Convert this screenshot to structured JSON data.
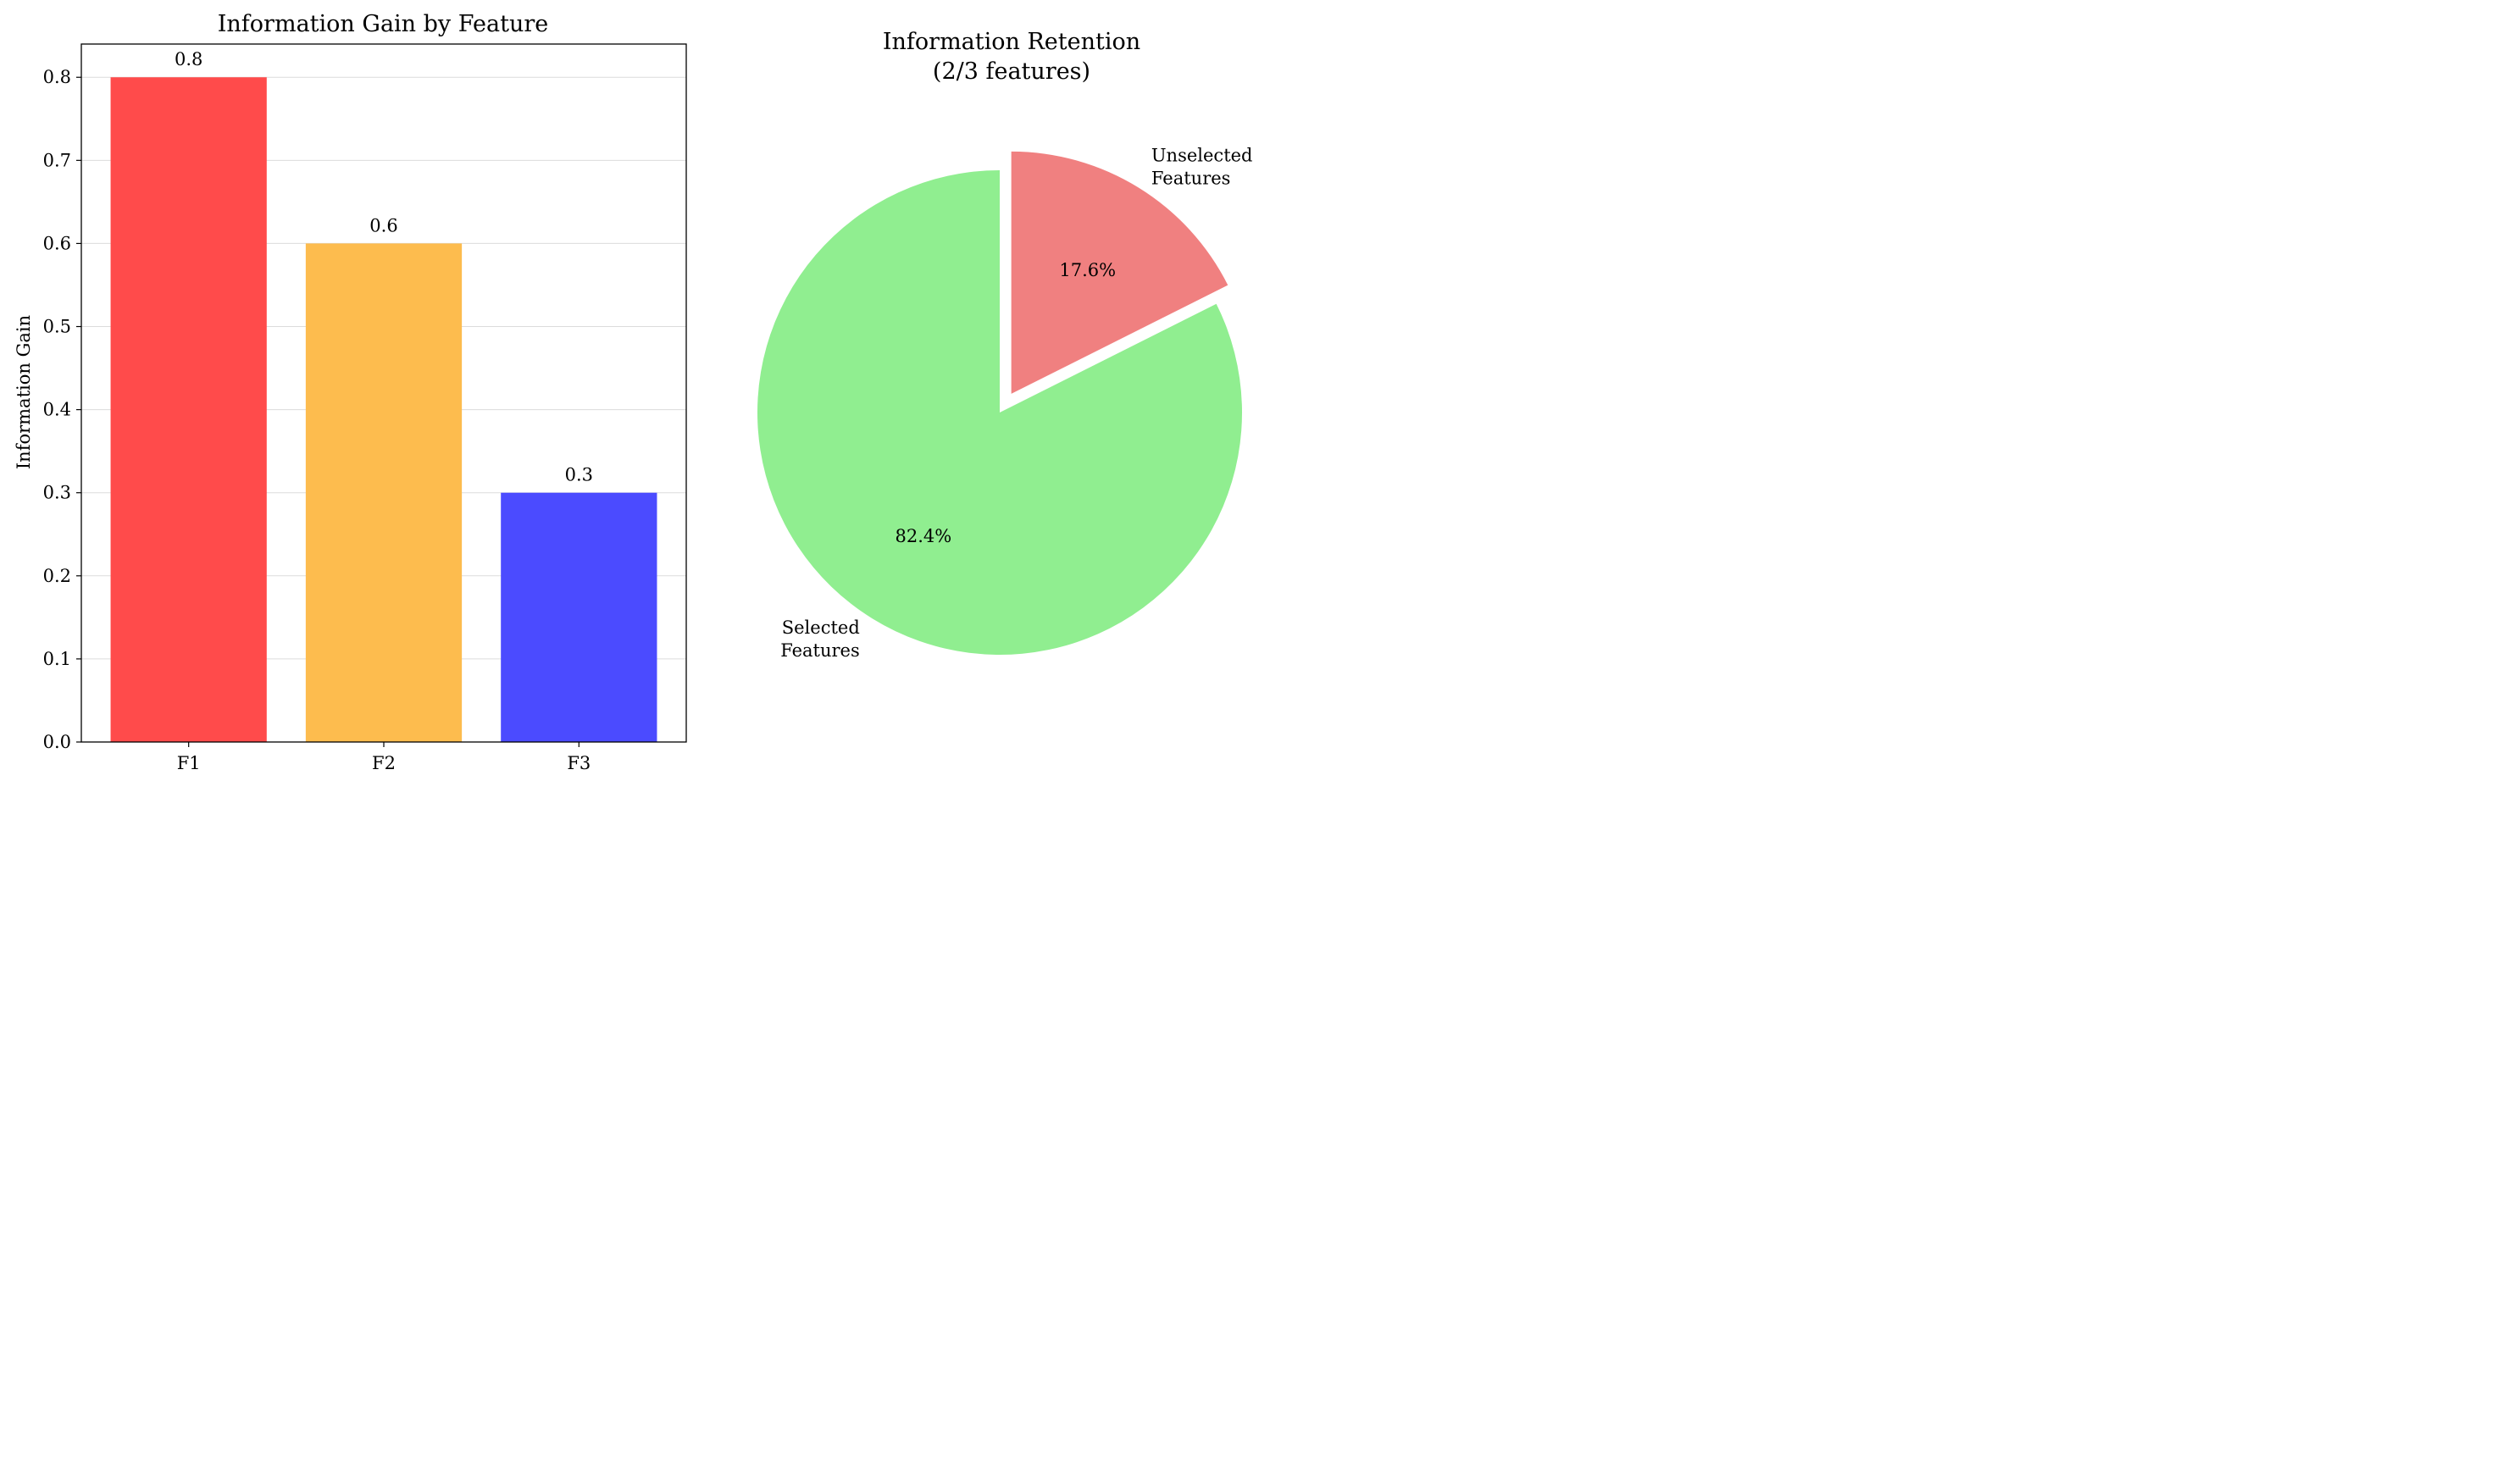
{
  "chart_data": [
    {
      "type": "bar",
      "title": "Information Gain by Feature",
      "xlabel": "",
      "ylabel": "Information Gain",
      "categories": [
        "F1",
        "F2",
        "F3"
      ],
      "values": [
        0.8,
        0.6,
        0.3
      ],
      "value_labels": [
        "0.8",
        "0.6",
        "0.3"
      ],
      "colors": [
        "#ff4b4b",
        "#fdbc4e",
        "#4b4bff"
      ],
      "ylim": [
        0,
        0.84
      ],
      "yticks": [
        0.0,
        0.1,
        0.2,
        0.3,
        0.4,
        0.5,
        0.6,
        0.7,
        0.8
      ],
      "ytick_labels": [
        "0.0",
        "0.1",
        "0.2",
        "0.3",
        "0.4",
        "0.5",
        "0.6",
        "0.7",
        "0.8"
      ],
      "grid": "horizontal"
    },
    {
      "type": "pie",
      "title_lines": [
        "Information Retention",
        "(2/3 features)"
      ],
      "slices": [
        {
          "label_lines": [
            "Unselected",
            "Features"
          ],
          "value": 17.6,
          "pct_label": "17.6%",
          "color": "#f08080",
          "exploded": true
        },
        {
          "label_lines": [
            "Selected",
            "Features"
          ],
          "value": 82.4,
          "pct_label": "82.4%",
          "color": "#90ee90",
          "exploded": false
        }
      ],
      "start_angle_deg": 90,
      "direction": "clockwise"
    }
  ]
}
